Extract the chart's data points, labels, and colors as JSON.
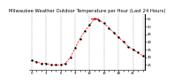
{
  "title": "Milwaukee Weather Outdoor Temperature per Hour (Last 24 Hours)",
  "hours": [
    0,
    1,
    2,
    3,
    4,
    5,
    6,
    7,
    8,
    9,
    10,
    11,
    12,
    13,
    14,
    15,
    16,
    17,
    18,
    19,
    20,
    21,
    22,
    23
  ],
  "temps": [
    28,
    27,
    26,
    26,
    25,
    25,
    25,
    26,
    30,
    36,
    42,
    47,
    51,
    55,
    54,
    52,
    49,
    46,
    43,
    40,
    37,
    35,
    33,
    31
  ],
  "line_color": "#ff0000",
  "marker_color": "#000000",
  "bg_color": "#ffffff",
  "grid_color": "#888888",
  "title_color": "#000000",
  "ylim": [
    22,
    58
  ],
  "yticks": [
    25,
    30,
    35,
    40,
    45,
    50,
    55
  ],
  "ytick_labels": [
    "25",
    "30",
    "35",
    "40",
    "45",
    "50",
    "55"
  ],
  "title_fontsize": 3.8,
  "tick_fontsize": 2.8,
  "highlight_hour": 13,
  "highlight_temp": 55,
  "grid_hours": [
    0,
    3,
    6,
    9,
    12,
    15,
    18,
    21,
    23
  ]
}
